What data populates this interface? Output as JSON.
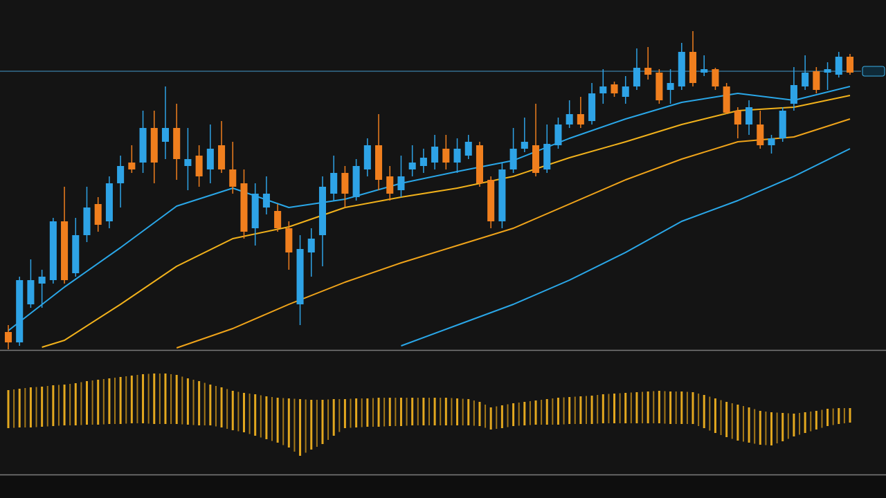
{
  "chart_data": [
    {
      "type": "candlestick",
      "up_color": "#2ea3e6",
      "down_color": "#f07f1e",
      "ylim": [
        0,
        505
      ],
      "reference_line": {
        "value": 402,
        "color": "#3a7fa8"
      },
      "open": [
        25,
        10,
        65,
        95,
        100,
        185,
        110,
        165,
        210,
        185,
        240,
        270,
        270,
        320,
        300,
        320,
        265,
        280,
        260,
        295,
        260,
        240,
        175,
        205,
        200,
        175,
        65,
        140,
        165,
        225,
        255,
        220,
        260,
        295,
        250,
        230,
        260,
        265,
        270,
        290,
        270,
        280,
        295,
        245,
        185,
        260,
        290,
        295,
        260,
        295,
        325,
        340,
        330,
        370,
        383,
        365,
        380,
        407,
        400,
        375,
        380,
        430,
        400,
        405,
        380,
        345,
        325,
        325,
        295,
        305,
        355,
        380,
        402,
        400,
        397,
        423
      ],
      "high": [
        35,
        105,
        130,
        115,
        190,
        235,
        190,
        235,
        220,
        250,
        280,
        295,
        345,
        345,
        380,
        355,
        320,
        295,
        325,
        330,
        300,
        260,
        240,
        250,
        210,
        185,
        165,
        175,
        250,
        280,
        265,
        275,
        305,
        340,
        265,
        280,
        295,
        290,
        310,
        310,
        305,
        310,
        300,
        250,
        270,
        320,
        335,
        355,
        325,
        335,
        360,
        365,
        385,
        405,
        387,
        395,
        435,
        437,
        405,
        405,
        443,
        460,
        425,
        407,
        385,
        350,
        360,
        345,
        310,
        350,
        408,
        425,
        408,
        415,
        430,
        427
      ],
      "low": [
        0,
        5,
        60,
        60,
        95,
        95,
        105,
        155,
        170,
        175,
        205,
        255,
        255,
        240,
        275,
        245,
        230,
        235,
        240,
        255,
        225,
        160,
        150,
        195,
        170,
        115,
        35,
        105,
        120,
        215,
        205,
        215,
        250,
        230,
        215,
        220,
        250,
        255,
        260,
        260,
        255,
        275,
        235,
        175,
        175,
        255,
        285,
        250,
        255,
        290,
        320,
        320,
        325,
        355,
        365,
        355,
        375,
        390,
        355,
        355,
        375,
        380,
        395,
        375,
        340,
        305,
        310,
        290,
        283,
        300,
        345,
        375,
        370,
        375,
        393,
        397
      ],
      "close": [
        10,
        100,
        100,
        105,
        185,
        100,
        165,
        205,
        180,
        240,
        265,
        260,
        320,
        270,
        320,
        275,
        275,
        250,
        290,
        260,
        235,
        170,
        225,
        225,
        175,
        140,
        145,
        160,
        235,
        255,
        225,
        265,
        295,
        245,
        225,
        250,
        270,
        277,
        293,
        270,
        290,
        300,
        240,
        185,
        260,
        290,
        300,
        255,
        297,
        325,
        340,
        325,
        370,
        380,
        370,
        380,
        407,
        397,
        360,
        385,
        430,
        385,
        405,
        380,
        342,
        325,
        350,
        295,
        305,
        345,
        382,
        400,
        375,
        405,
        423,
        400
      ],
      "lines": [
        {
          "color": "#2aa7e8",
          "x": [
            0,
            5,
            10,
            15,
            20,
            25,
            30,
            35,
            40,
            45,
            50,
            55,
            60,
            65,
            70,
            75
          ],
          "values": [
            27,
            90,
            147,
            207,
            233,
            205,
            217,
            240,
            257,
            273,
            305,
            333,
            357,
            370,
            360,
            380
          ]
        },
        {
          "color": "#f2b21b",
          "x": [
            3,
            5,
            10,
            15,
            20,
            25,
            30,
            35,
            40,
            45,
            50,
            55,
            60,
            65,
            70,
            75
          ],
          "values": [
            3,
            13,
            65,
            120,
            160,
            177,
            205,
            220,
            233,
            250,
            277,
            300,
            325,
            345,
            350,
            367
          ]
        },
        {
          "color": "#f0a41a",
          "x": [
            15,
            20,
            25,
            30,
            35,
            40,
            45,
            50,
            55,
            60,
            65,
            70,
            75
          ],
          "values": [
            2,
            30,
            65,
            97,
            125,
            150,
            175,
            210,
            245,
            275,
            300,
            307,
            333
          ]
        },
        {
          "color": "#2aa7e8",
          "x": [
            35,
            40,
            45,
            50,
            55,
            60,
            65,
            70,
            75
          ],
          "values": [
            5,
            35,
            65,
            100,
            140,
            185,
            215,
            250,
            290
          ]
        }
      ]
    },
    {
      "type": "range",
      "color": "#e3a81f",
      "ylim": [
        0,
        176
      ],
      "upper": [
        122,
        124,
        126,
        127,
        129,
        130,
        132,
        135,
        137,
        139,
        141,
        143,
        145,
        146,
        146,
        144,
        139,
        135,
        130,
        126,
        121,
        118,
        116,
        113,
        111,
        110,
        109,
        108,
        108,
        109,
        109,
        110,
        110,
        111,
        111,
        111,
        111,
        111,
        111,
        111,
        110,
        109,
        105,
        97,
        100,
        103,
        105,
        107,
        109,
        111,
        112,
        113,
        114,
        116,
        117,
        118,
        119,
        120,
        121,
        120,
        120,
        119,
        115,
        110,
        105,
        101,
        97,
        92,
        90,
        89,
        88,
        90,
        92,
        95,
        96,
        96
      ],
      "lower": [
        67,
        68,
        68,
        69,
        70,
        71,
        71,
        72,
        72,
        73,
        73,
        74,
        74,
        73,
        73,
        73,
        72,
        71,
        71,
        68,
        64,
        61,
        56,
        51,
        46,
        39,
        27,
        36,
        44,
        56,
        67,
        68,
        69,
        69,
        70,
        70,
        71,
        71,
        71,
        71,
        71,
        71,
        70,
        65,
        67,
        70,
        71,
        72,
        72,
        72,
        73,
        73,
        73,
        74,
        74,
        74,
        74,
        74,
        74,
        73,
        73,
        73,
        67,
        60,
        54,
        49,
        46,
        43,
        42,
        48,
        55,
        60,
        65,
        70,
        73,
        75
      ]
    }
  ]
}
